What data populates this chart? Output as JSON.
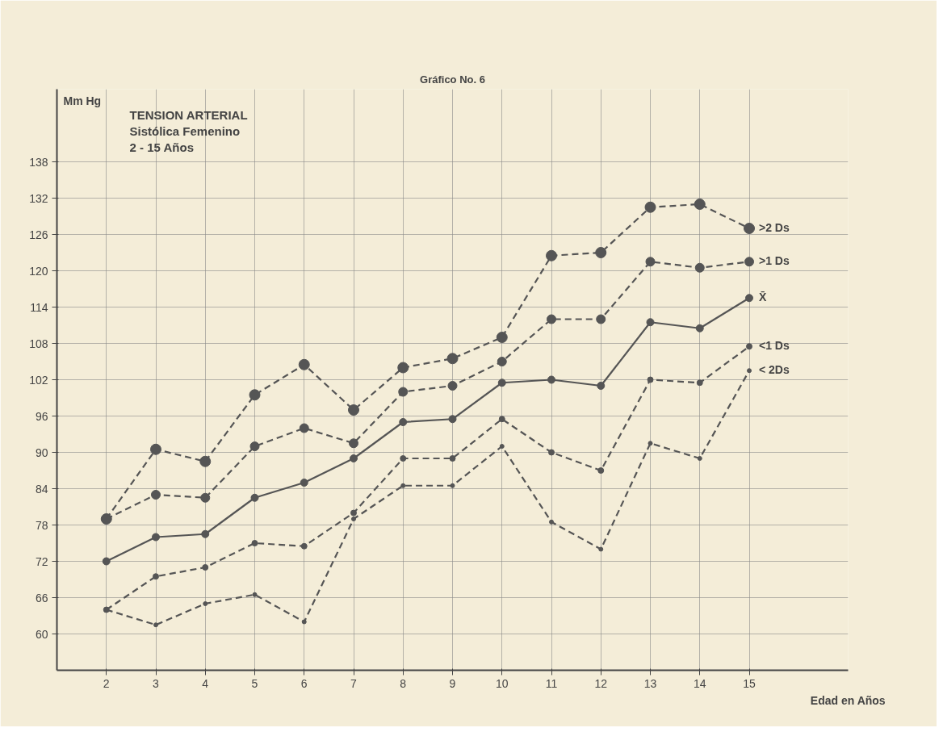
{
  "chart_data": {
    "type": "line",
    "title": "Gráfico No. 6",
    "xlabel": "Edad en Años",
    "ylabel": "Mm Hg",
    "annotations": [
      "TENSION ARTERIAL",
      "Sistólica Femenino",
      "2 - 15 Años"
    ],
    "x": [
      2,
      3,
      4,
      5,
      6,
      7,
      8,
      9,
      10,
      11,
      12,
      13,
      14,
      15
    ],
    "xlim": [
      1,
      17
    ],
    "ylim": [
      54,
      150
    ],
    "xticks": [
      2,
      3,
      4,
      5,
      6,
      7,
      8,
      9,
      10,
      11,
      12,
      13,
      14,
      15
    ],
    "yticks": [
      60,
      66,
      72,
      78,
      84,
      90,
      96,
      102,
      108,
      114,
      120,
      126,
      132,
      138
    ],
    "grid": true,
    "marker": "circle",
    "series": [
      {
        "name": ">2 Ds",
        "color": "#555555",
        "line_style": "dashed",
        "values": [
          79,
          90.5,
          88.5,
          99.5,
          104.5,
          97,
          104,
          105.5,
          109,
          122.5,
          123,
          130.5,
          131,
          127
        ]
      },
      {
        "name": ">1 Ds",
        "color": "#555555",
        "line_style": "dashed",
        "values": [
          79,
          83,
          82.5,
          91,
          94,
          91.5,
          100,
          101,
          105,
          112,
          112,
          121.5,
          120.5,
          121.5
        ]
      },
      {
        "name": "X̄",
        "color": "#555555",
        "line_style": "solid",
        "values": [
          72,
          76,
          76.5,
          82.5,
          85,
          89,
          95,
          95.5,
          101.5,
          102,
          101,
          111.5,
          110.5,
          115.5
        ]
      },
      {
        "name": "<1 Ds",
        "color": "#555555",
        "line_style": "dashed",
        "values": [
          64,
          69.5,
          71,
          75,
          74.5,
          80,
          89,
          89,
          95.5,
          90,
          87,
          102,
          101.5,
          107.5
        ]
      },
      {
        "name": "< 2Ds",
        "color": "#555555",
        "line_style": "dashed",
        "values": [
          64,
          61.5,
          65,
          66.5,
          62,
          79,
          84.5,
          84.5,
          91,
          78.5,
          74,
          91.5,
          89,
          103.5
        ]
      }
    ]
  }
}
